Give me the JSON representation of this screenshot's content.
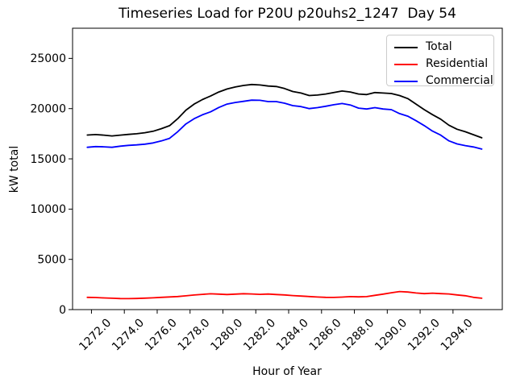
{
  "chart_data": {
    "type": "line",
    "title": "Timeseries Load for P20U p20uhs2_1247  Day 54",
    "xlabel": "Hour of Year",
    "ylabel": "kW total",
    "xlim": [
      1270.85,
      1297.0
    ],
    "ylim": [
      0,
      28000
    ],
    "grid": false,
    "xticks": [
      1272,
      1274,
      1276,
      1278,
      1280,
      1282,
      1284,
      1286,
      1288,
      1290,
      1292,
      1294
    ],
    "xtick_labels": [
      "1272.0",
      "1274.0",
      "1276.0",
      "1278.0",
      "1280.0",
      "1282.0",
      "1284.0",
      "1286.0",
      "1288.0",
      "1290.0",
      "1292.0",
      "1294.0"
    ],
    "yticks": [
      0,
      5000,
      10000,
      15000,
      20000,
      25000
    ],
    "ytick_labels": [
      "0",
      "5000",
      "10000",
      "15000",
      "20000",
      "25000"
    ],
    "legend": {
      "position": "upper right",
      "entries": [
        "Total",
        "Residential",
        "Commercial"
      ]
    },
    "x": [
      1271.75,
      1272.25,
      1272.75,
      1273.25,
      1273.75,
      1274.25,
      1274.75,
      1275.25,
      1275.75,
      1276.25,
      1276.75,
      1277.25,
      1277.75,
      1278.25,
      1278.75,
      1279.25,
      1279.75,
      1280.25,
      1280.75,
      1281.25,
      1281.75,
      1282.25,
      1282.75,
      1283.25,
      1283.75,
      1284.25,
      1284.75,
      1285.25,
      1285.75,
      1286.25,
      1286.75,
      1287.25,
      1287.75,
      1288.25,
      1288.75,
      1289.25,
      1289.75,
      1290.25,
      1290.75,
      1291.25,
      1291.75,
      1292.25,
      1292.75,
      1293.25,
      1293.75,
      1294.25,
      1294.75,
      1295.25,
      1295.75
    ],
    "series": [
      {
        "name": "Total",
        "color": "#000000",
        "values": [
          17370,
          17420,
          17360,
          17280,
          17360,
          17430,
          17500,
          17600,
          17750,
          18000,
          18300,
          19000,
          19850,
          20450,
          20900,
          21250,
          21650,
          21950,
          22150,
          22300,
          22400,
          22350,
          22250,
          22200,
          22000,
          21700,
          21550,
          21300,
          21350,
          21450,
          21600,
          21750,
          21650,
          21450,
          21400,
          21600,
          21550,
          21500,
          21300,
          21000,
          20450,
          19900,
          19400,
          18950,
          18350,
          17950,
          17700,
          17400,
          17100
        ]
      },
      {
        "name": "Residential",
        "color": "#ff0000",
        "values": [
          1220,
          1200,
          1160,
          1130,
          1100,
          1090,
          1110,
          1140,
          1170,
          1220,
          1260,
          1300,
          1370,
          1450,
          1520,
          1570,
          1540,
          1500,
          1540,
          1580,
          1560,
          1520,
          1550,
          1500,
          1460,
          1400,
          1350,
          1300,
          1250,
          1220,
          1210,
          1240,
          1290,
          1270,
          1290,
          1420,
          1540,
          1680,
          1800,
          1750,
          1650,
          1590,
          1640,
          1590,
          1560,
          1460,
          1380,
          1220,
          1130
        ]
      },
      {
        "name": "Commercial",
        "color": "#0000ff",
        "values": [
          16150,
          16220,
          16200,
          16150,
          16260,
          16340,
          16390,
          16460,
          16580,
          16780,
          17040,
          17700,
          18480,
          19000,
          19380,
          19680,
          20110,
          20450,
          20610,
          20720,
          20840,
          20830,
          20700,
          20700,
          20540,
          20300,
          20200,
          20000,
          20100,
          20230,
          20390,
          20510,
          20360,
          20050,
          19960,
          20100,
          19960,
          19900,
          19500,
          19250,
          18800,
          18310,
          17760,
          17360,
          16790,
          16490,
          16320,
          16180,
          15970
        ]
      }
    ]
  }
}
